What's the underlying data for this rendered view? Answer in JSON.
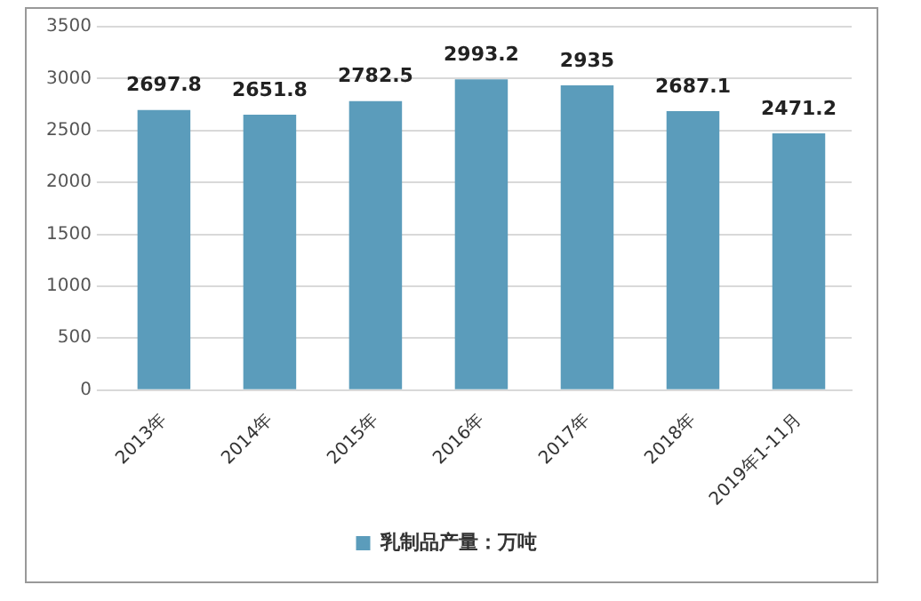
{
  "chart_data": {
    "type": "bar",
    "categories": [
      "2013年",
      "2014年",
      "2015年",
      "2016年",
      "2017年",
      "2018年",
      "2019年1-11月"
    ],
    "series": [
      {
        "name": "乳制品产量：万吨",
        "color": "#5b9cbb",
        "values": [
          2697.8,
          2651.8,
          2782.5,
          2993.2,
          2935,
          2687.1,
          2471.2
        ]
      }
    ],
    "ylim": [
      0,
      3500
    ],
    "yticks": [
      0,
      500,
      1000,
      1500,
      2000,
      2500,
      3000,
      3500
    ],
    "grid": "y",
    "legend": "bottom",
    "data_labels": true
  }
}
